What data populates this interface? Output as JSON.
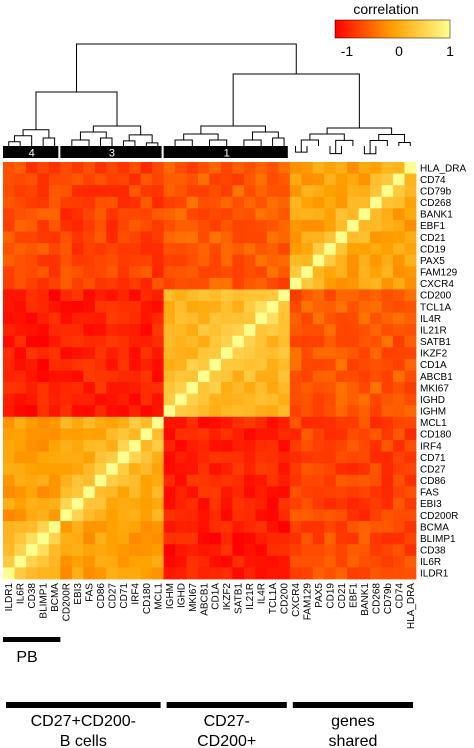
{
  "chart_data": {
    "type": "heatmap",
    "legend": {
      "title": "correlation",
      "ticks": [
        "-1",
        "0",
        "1"
      ],
      "placement": "top-right"
    },
    "genes": [
      "ILDR1",
      "IL6R",
      "CD38",
      "BLIMP1",
      "BCMA",
      "CD200R",
      "EBI3",
      "FAS",
      "CD86",
      "CD27",
      "CD71",
      "IRF4",
      "CD180",
      "MCL1",
      "IGHM",
      "IGHD",
      "MKI67",
      "ABCB1",
      "CD1A",
      "IKZF2",
      "SATB1",
      "IL21R",
      "IL4R",
      "TCL1A",
      "CD200",
      "CXCR4",
      "FAM129",
      "PAX5",
      "CD19",
      "CD21",
      "EBF1",
      "BANK1",
      "CD268",
      "CD79b",
      "CD74",
      "HLA_DRA"
    ],
    "clusters": [
      {
        "label": "4",
        "start": 0,
        "end": 4
      },
      {
        "label": "3",
        "start": 5,
        "end": 13
      },
      {
        "label": "1",
        "start": 14,
        "end": 24
      }
    ],
    "groups": [
      {
        "label": "PB",
        "start": 0,
        "end": 4
      },
      {
        "label": "CD27+CD200-\nB cells",
        "start": 0,
        "end": 13
      },
      {
        "label": "CD27-\nCD200+\nB cells",
        "start": 14,
        "end": 24
      },
      {
        "label": "genes\nshared",
        "start": 25,
        "end": 35
      }
    ],
    "blocks": [
      {
        "start": 0,
        "end": 4,
        "within": 0.3
      },
      {
        "start": 5,
        "end": 13,
        "within": 0.15
      },
      {
        "start": 14,
        "end": 24,
        "within": 0.25
      },
      {
        "start": 25,
        "end": 35,
        "within": 0.05
      }
    ],
    "between": [
      [
        1.0,
        0.0,
        -0.85,
        -0.55
      ],
      [
        0.0,
        1.0,
        -0.8,
        -0.6
      ],
      [
        -0.85,
        -0.8,
        1.0,
        -0.45
      ],
      [
        -0.55,
        -0.6,
        -0.45,
        1.0
      ]
    ],
    "diagonal": 1,
    "colormap": {
      "low": "#ff0000",
      "mid": "#ffa000",
      "high": "#ffff90"
    },
    "range": [
      -1,
      1
    ]
  }
}
